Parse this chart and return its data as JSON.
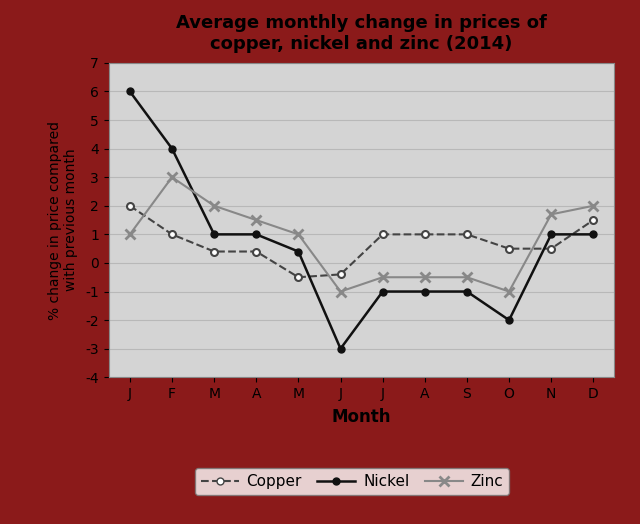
{
  "title": "Average monthly change in prices of\ncopper, nickel and zinc (2014)",
  "xlabel": "Month",
  "ylabel": "% change in price compared\nwith previous month",
  "months": [
    "J",
    "F",
    "M",
    "A",
    "M",
    "J",
    "J",
    "A",
    "S",
    "O",
    "N",
    "D"
  ],
  "copper": [
    2,
    1,
    0.4,
    0.4,
    -0.5,
    -0.4,
    1,
    1,
    1,
    0.5,
    0.5,
    1.5
  ],
  "nickel": [
    6,
    4,
    1,
    1,
    0.4,
    -3,
    -1,
    -1,
    -1,
    -2,
    1,
    1
  ],
  "zinc": [
    1,
    3,
    2,
    1.5,
    1,
    -1,
    -0.5,
    -0.5,
    -0.5,
    -1,
    1.7,
    2
  ],
  "ylim": [
    -4,
    7
  ],
  "yticks": [
    -4,
    -3,
    -2,
    -1,
    0,
    1,
    2,
    3,
    4,
    5,
    6,
    7
  ],
  "bg_color": "#d4d4d4",
  "outer_bg_color": "#cccccc",
  "border_color": "#8b1a1a",
  "grid_color": "#b8b8b8",
  "line_color_copper": "#444444",
  "line_color_nickel": "#111111",
  "line_color_zinc": "#888888"
}
